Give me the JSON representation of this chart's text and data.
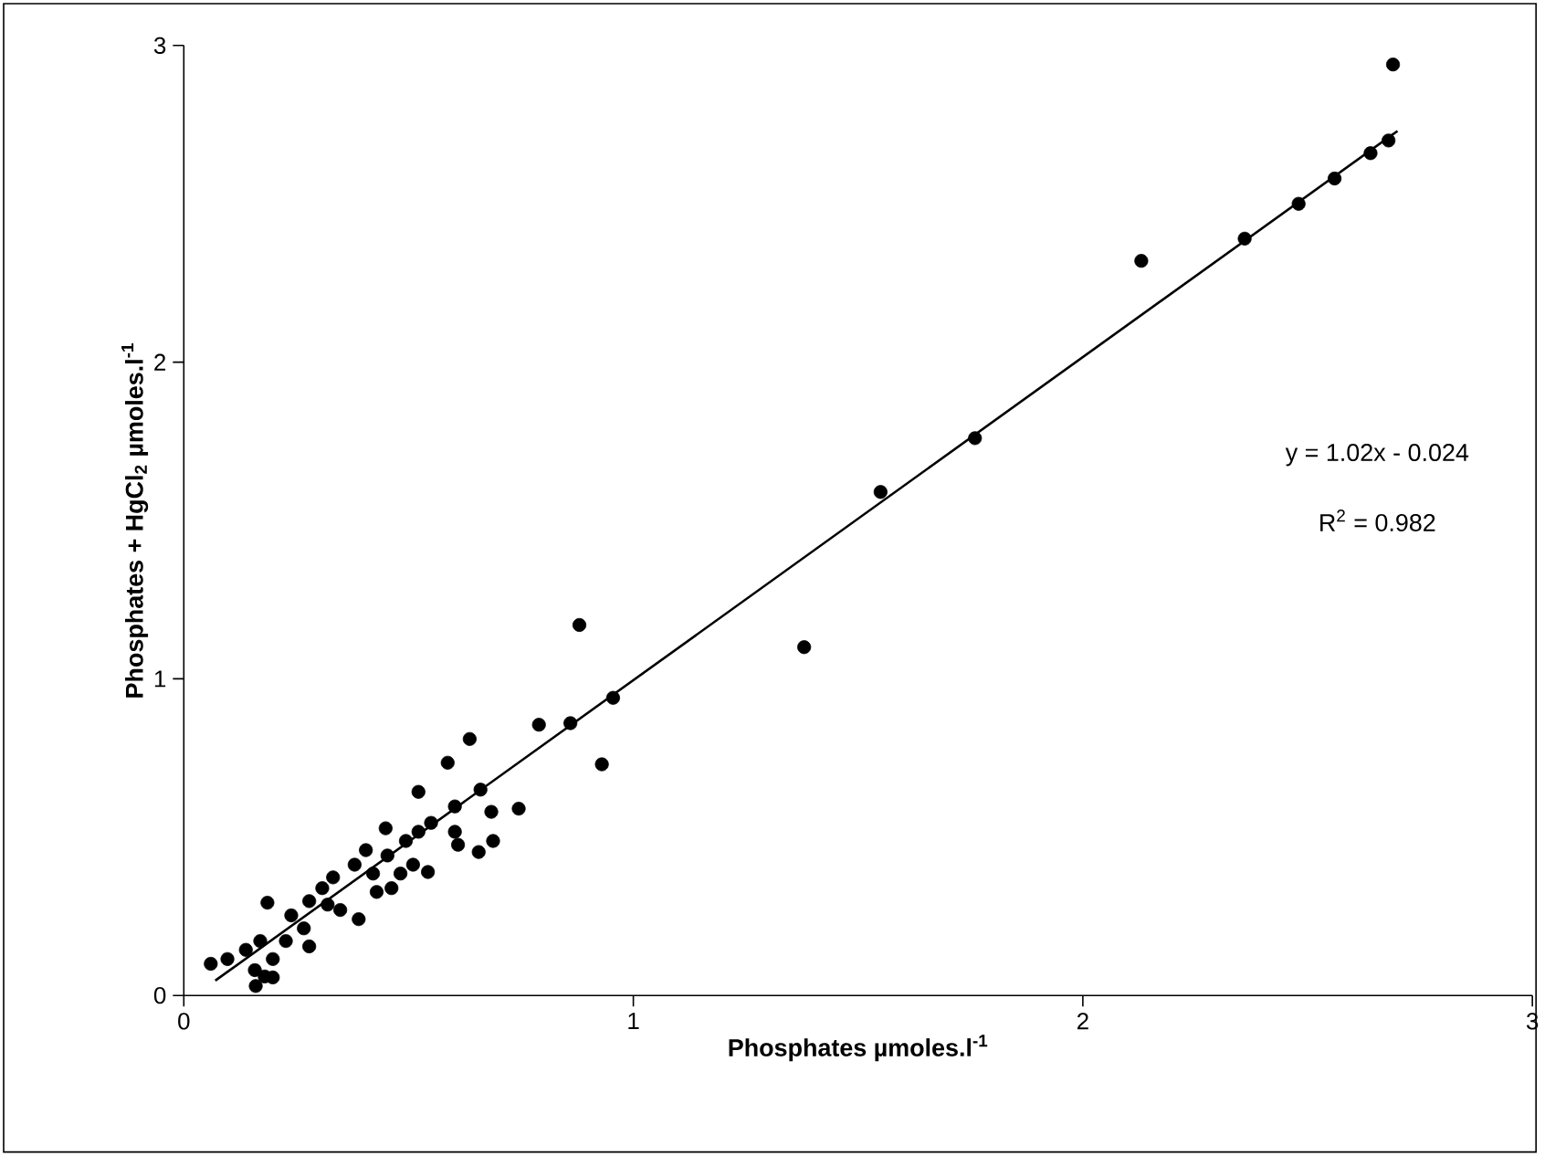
{
  "chart_data": {
    "type": "scatter",
    "xlabel": "Phosphates µmoles.l$^{-1}$",
    "ylabel": "Phosphates + HgCl$_{2}$ µmoles.l$^{-1}$",
    "xlim": [
      0,
      3
    ],
    "ylim": [
      0,
      3
    ],
    "xticks": [
      0,
      1,
      2,
      3
    ],
    "yticks": [
      0,
      1,
      2,
      3
    ],
    "grid": false,
    "annotations": [
      "y = 1.02x - 0.024",
      "R$^{2}$ = 0.982"
    ],
    "series": [
      {
        "type": "scatter",
        "marker": "circle",
        "color": "#000000",
        "x": [
          2.69,
          2.68,
          2.64,
          2.56,
          2.48,
          2.36,
          2.13,
          1.76,
          1.55,
          1.38,
          0.955,
          0.88,
          0.86,
          0.93,
          0.79,
          0.636,
          0.587,
          0.522,
          0.66,
          0.603,
          0.684,
          0.745,
          0.603,
          0.61,
          0.656,
          0.688,
          0.449,
          0.405,
          0.55,
          0.522,
          0.494,
          0.453,
          0.51,
          0.543,
          0.482,
          0.38,
          0.421,
          0.332,
          0.308,
          0.279,
          0.32,
          0.348,
          0.389,
          0.462,
          0.429,
          0.186,
          0.239,
          0.267,
          0.279,
          0.227,
          0.17,
          0.138,
          0.097,
          0.198,
          0.158,
          0.198,
          0.06,
          0.16,
          0.18
        ],
        "values": [
          2.94,
          2.7,
          2.66,
          2.58,
          2.5,
          2.39,
          2.32,
          1.76,
          1.59,
          1.1,
          0.94,
          1.17,
          0.86,
          0.73,
          0.855,
          0.81,
          0.735,
          0.643,
          0.65,
          0.597,
          0.58,
          0.59,
          0.517,
          0.476,
          0.453,
          0.488,
          0.528,
          0.459,
          0.545,
          0.517,
          0.488,
          0.442,
          0.413,
          0.39,
          0.385,
          0.413,
          0.385,
          0.373,
          0.339,
          0.298,
          0.287,
          0.27,
          0.241,
          0.339,
          0.327,
          0.293,
          0.253,
          0.212,
          0.155,
          0.172,
          0.172,
          0.144,
          0.115,
          0.115,
          0.08,
          0.057,
          0.1,
          0.03,
          0.06
        ]
      },
      {
        "type": "line",
        "marker": "none",
        "color": "#000000",
        "x": [
          0.07,
          2.7
        ],
        "values": [
          0.047,
          2.73
        ]
      }
    ]
  }
}
